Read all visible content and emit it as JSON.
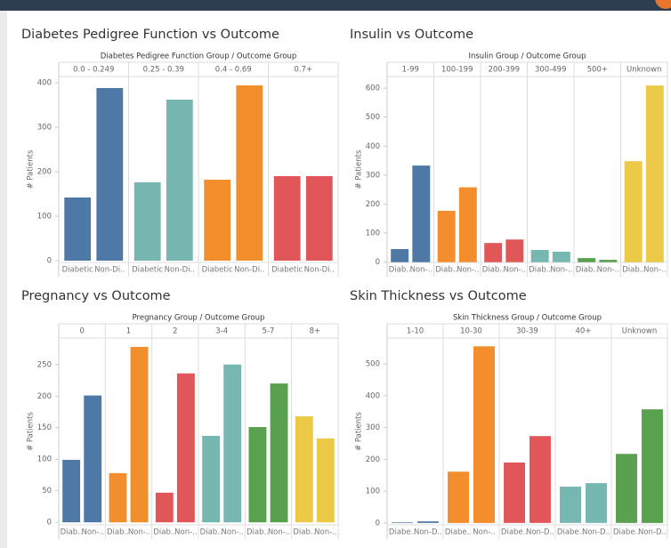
{
  "chart_data": [
    {
      "type": "bar",
      "title": "Diabetes Pedigree Function vs Outcome",
      "header": "Diabetes Pedigree Function Group / Outcome Group",
      "y_label": "# Patients",
      "ylim": [
        -4,
        414
      ],
      "yticks": [
        0,
        100,
        200,
        300,
        400
      ],
      "groups": [
        {
          "name": "0.0 - 0.249",
          "color": "#4e79a7",
          "categories": [
            "Diabetic",
            "Non-Di.."
          ],
          "values": [
            142,
            388
          ]
        },
        {
          "name": "0.25 - 0.39",
          "color": "#76b7b2",
          "categories": [
            "Diabetic",
            "Non-Di.."
          ],
          "values": [
            176,
            362
          ]
        },
        {
          "name": "0.4 - 0.69",
          "color": "#f28e2b",
          "categories": [
            "Diabetic",
            "Non-Di.."
          ],
          "values": [
            182,
            394
          ]
        },
        {
          "name": "0.7+",
          "color": "#e15759",
          "categories": [
            "Diabetic",
            "Non-Di.."
          ],
          "values": [
            190,
            190
          ]
        }
      ]
    },
    {
      "type": "bar",
      "title": "Insulin vs Outcome",
      "header": "Insulin Group / Outcome Group",
      "y_label": "# Patients",
      "ylim": [
        -1,
        640
      ],
      "yticks": [
        0,
        100,
        200,
        300,
        400,
        500,
        600
      ],
      "groups": [
        {
          "name": "1-99",
          "color": "#4e79a7",
          "categories": [
            "Diab..",
            "Non-.."
          ],
          "values": [
            45,
            333
          ]
        },
        {
          "name": "100-199",
          "color": "#f28e2b",
          "categories": [
            "Diab..",
            "Non-.."
          ],
          "values": [
            177,
            258
          ]
        },
        {
          "name": "200-399",
          "color": "#e15759",
          "categories": [
            "Diab..",
            "Non-.."
          ],
          "values": [
            66,
            78
          ]
        },
        {
          "name": "300-499",
          "color": "#76b7b2",
          "categories": [
            "Diab..",
            "Non-.."
          ],
          "values": [
            42,
            36
          ]
        },
        {
          "name": "500+",
          "color": "#59a14f",
          "categories": [
            "Diab..",
            "Non-.."
          ],
          "values": [
            14,
            8
          ]
        },
        {
          "name": "Unknown",
          "color": "#edc948",
          "categories": [
            "Diab..",
            "Non-.."
          ],
          "values": [
            348,
            609
          ]
        }
      ]
    },
    {
      "type": "bar",
      "title": "Pregnancy vs Outcome",
      "header": "Pregnancy Group / Outcome Group",
      "y_label": "# Patients",
      "ylim": [
        -4,
        292
      ],
      "yticks": [
        0,
        50,
        100,
        150,
        200,
        250
      ],
      "groups": [
        {
          "name": "0",
          "color": "#4e79a7",
          "categories": [
            "Diab..",
            "Non-.."
          ],
          "values": [
            99,
            201
          ]
        },
        {
          "name": "1",
          "color": "#f28e2b",
          "categories": [
            "Diab..",
            "Non-.."
          ],
          "values": [
            78,
            278
          ]
        },
        {
          "name": "2",
          "color": "#e15759",
          "categories": [
            "Diab..",
            "Non-.."
          ],
          "values": [
            47,
            236
          ]
        },
        {
          "name": "3-4",
          "color": "#76b7b2",
          "categories": [
            "Diab..",
            "Non-.."
          ],
          "values": [
            137,
            250
          ]
        },
        {
          "name": "5-7",
          "color": "#59a14f",
          "categories": [
            "Diab..",
            "Non-.."
          ],
          "values": [
            151,
            220
          ]
        },
        {
          "name": "8+",
          "color": "#edc948",
          "categories": [
            "Diab..",
            "Non-.."
          ],
          "values": [
            168,
            133
          ]
        }
      ]
    },
    {
      "type": "bar",
      "title": "Skin Thickness vs Outcome",
      "header": "Skin Thickness Group / Outcome Group",
      "y_label": "# Patients",
      "ylim": [
        -6,
        581
      ],
      "yticks": [
        0,
        100,
        200,
        300,
        400,
        500
      ],
      "groups": [
        {
          "name": "1-10",
          "color": "#4e79a7",
          "categories": [
            "Diabe..",
            "Non-D.."
          ],
          "values": [
            2,
            5
          ]
        },
        {
          "name": "10-30",
          "color": "#f28e2b",
          "categories": [
            "Diabe..",
            "Non-.."
          ],
          "values": [
            161,
            555
          ]
        },
        {
          "name": "30-39",
          "color": "#e15759",
          "categories": [
            "Diabe..",
            "Non-D.."
          ],
          "values": [
            190,
            273
          ]
        },
        {
          "name": "40+",
          "color": "#76b7b2",
          "categories": [
            "Diabe..",
            "Non-D.."
          ],
          "values": [
            114,
            125
          ]
        },
        {
          "name": "Unknown",
          "color": "#59a14f",
          "categories": [
            "Diabe..",
            "Non-D.."
          ],
          "values": [
            217,
            357
          ]
        }
      ]
    }
  ]
}
